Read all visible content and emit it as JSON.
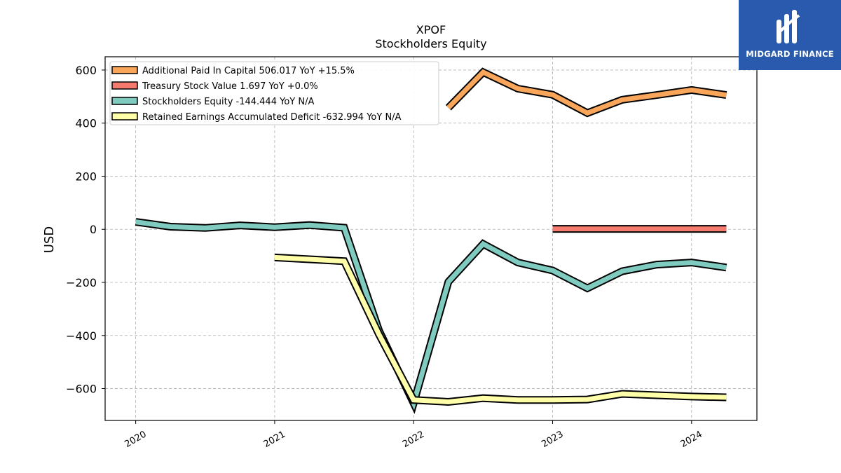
{
  "brand": {
    "logo_text": "MIDGARD FINANCE",
    "logo_bg": "#2a5aae"
  },
  "chart_data": {
    "type": "line",
    "title": "XPOF",
    "subtitle": "Stockholders  Equity",
    "xlabel": "",
    "ylabel": "USD",
    "xlim": [
      2019.78,
      2024.47
    ],
    "ylim": [
      -720,
      650
    ],
    "xticks": [
      {
        "value": 2020,
        "label": "2020"
      },
      {
        "value": 2021,
        "label": "2021"
      },
      {
        "value": 2022,
        "label": "2022"
      },
      {
        "value": 2023,
        "label": "2023"
      },
      {
        "value": 2024,
        "label": "2024"
      }
    ],
    "yticks": [
      {
        "value": 600,
        "label": "600"
      },
      {
        "value": 400,
        "label": "400"
      },
      {
        "value": 200,
        "label": "200"
      },
      {
        "value": 0,
        "label": "0"
      },
      {
        "value": -200,
        "label": "−200"
      },
      {
        "value": -400,
        "label": "−400"
      },
      {
        "value": -600,
        "label": "−600"
      }
    ],
    "grid": true,
    "legend_position": "top-left",
    "series": [
      {
        "name": "Additional Paid In Capital",
        "legend": "Additional Paid In Capital  506.017 YoY +15.5%",
        "color": "#f9a65a",
        "x": [
          2022.25,
          2022.5,
          2022.75,
          2023.0,
          2023.25,
          2023.5,
          2023.75,
          2024.0,
          2024.25
        ],
        "y": [
          458,
          592,
          530,
          507,
          438,
          488,
          506,
          525,
          506
        ]
      },
      {
        "name": "Treasury Stock Value",
        "legend": "Treasury Stock Value  1.697 YoY +0.0%",
        "color": "#f47b6e",
        "x": [
          2023.0,
          2023.25,
          2023.5,
          2023.75,
          2024.0,
          2024.25
        ],
        "y": [
          1.697,
          1.697,
          1.697,
          1.697,
          1.697,
          1.697
        ]
      },
      {
        "name": "Stockholders Equity",
        "legend": "Stockholders Equity  -144.444 YoY N/A",
        "color": "#80cbbf",
        "x": [
          2020.0,
          2020.25,
          2020.5,
          2020.75,
          2021.0,
          2021.25,
          2021.5,
          2021.75,
          2022.0,
          2022.25,
          2022.5,
          2022.75,
          2023.0,
          2023.25,
          2023.5,
          2023.75,
          2024.0,
          2024.25
        ],
        "y": [
          28,
          10,
          5,
          15,
          8,
          16,
          6,
          -380,
          -655,
          -198,
          -55,
          -125,
          -155,
          -222,
          -158,
          -133,
          -125,
          -144
        ]
      },
      {
        "name": "Retained Earnings Accumulated Deficit",
        "legend": "Retained Earnings Accumulated Deficit  -632.994 YoY N/A",
        "color": "#ffffaa",
        "x": [
          2021.0,
          2021.25,
          2021.5,
          2021.75,
          2022.0,
          2022.25,
          2022.5,
          2022.75,
          2023.0,
          2023.25,
          2023.5,
          2023.75,
          2024.0,
          2024.25
        ],
        "y": [
          -106,
          -113,
          -120,
          -395,
          -643,
          -650,
          -636,
          -643,
          -643,
          -641,
          -620,
          -625,
          -630,
          -633
        ]
      }
    ]
  }
}
